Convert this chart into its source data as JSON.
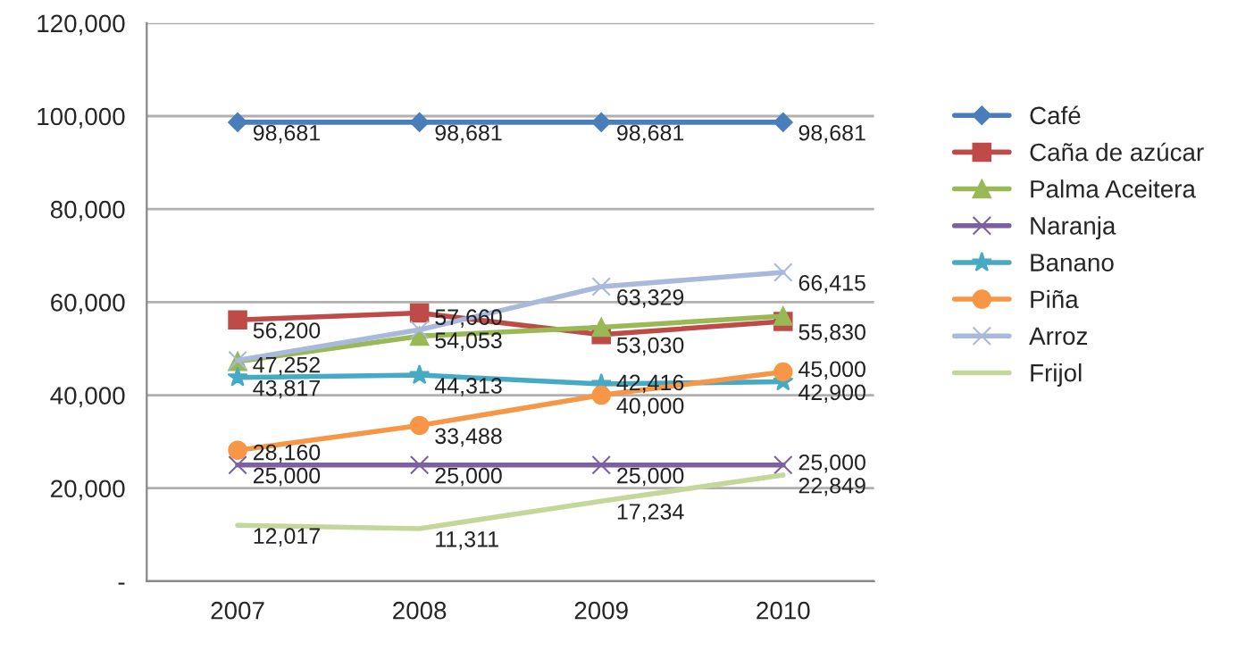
{
  "chart_data": {
    "type": "line",
    "categories": [
      "2007",
      "2008",
      "2009",
      "2010"
    ],
    "series": [
      {
        "name": "Café",
        "color": "#4a7ebb",
        "marker": "diamond",
        "values": [
          98681,
          98681,
          98681,
          98681
        ],
        "value_labels": [
          "98,681",
          "98,681",
          "98,681",
          "98,681"
        ]
      },
      {
        "name": "Caña de azúcar",
        "color": "#be4b48",
        "marker": "square",
        "values": [
          56200,
          57660,
          53030,
          55830
        ],
        "value_labels": [
          "56,200",
          "57,660",
          "53,030",
          "55,830"
        ]
      },
      {
        "name": "Palma Aceitera",
        "color": "#98b954",
        "marker": "triangle",
        "values": [
          47252,
          52700,
          54600,
          57000
        ],
        "value_labels": [
          "47,252",
          null,
          null,
          null
        ]
      },
      {
        "name": "Naranja",
        "color": "#7d60a0",
        "marker": "cross",
        "values": [
          25000,
          25000,
          25000,
          25000
        ],
        "value_labels": [
          "25,000",
          "25,000",
          "25,000",
          "25,000"
        ]
      },
      {
        "name": "Banano",
        "color": "#46aac5",
        "marker": "star",
        "values": [
          43817,
          44313,
          42416,
          42900
        ],
        "value_labels": [
          "43,817",
          "44,313",
          "42,416",
          "42,900"
        ]
      },
      {
        "name": "Piña",
        "color": "#f79646",
        "marker": "circle",
        "values": [
          28160,
          33488,
          40000,
          45000
        ],
        "value_labels": [
          "28,160",
          "33,488",
          "40,000",
          "45,000"
        ]
      },
      {
        "name": "Arroz",
        "color": "#a9b9dc",
        "marker": "cross",
        "values": [
          47500,
          54053,
          63329,
          66415
        ],
        "value_labels": [
          null,
          "54,053",
          "63,329",
          "66,415"
        ]
      },
      {
        "name": "Frijol",
        "color": "#c4d79b",
        "marker": "none",
        "values": [
          12017,
          11311,
          17234,
          22849
        ],
        "value_labels": [
          "12,017",
          "11,311",
          "17,234",
          "22,849"
        ]
      }
    ],
    "ylim": [
      0,
      120000
    ],
    "yticks": [
      {
        "value": 0,
        "label": "-"
      },
      {
        "value": 20000,
        "label": "20,000"
      },
      {
        "value": 40000,
        "label": "40,000"
      },
      {
        "value": 60000,
        "label": "60,000"
      },
      {
        "value": 80000,
        "label": "80,000"
      },
      {
        "value": 100000,
        "label": "100,000"
      },
      {
        "value": 120000,
        "label": "120,000"
      }
    ],
    "grid": "y",
    "legend": "right"
  }
}
